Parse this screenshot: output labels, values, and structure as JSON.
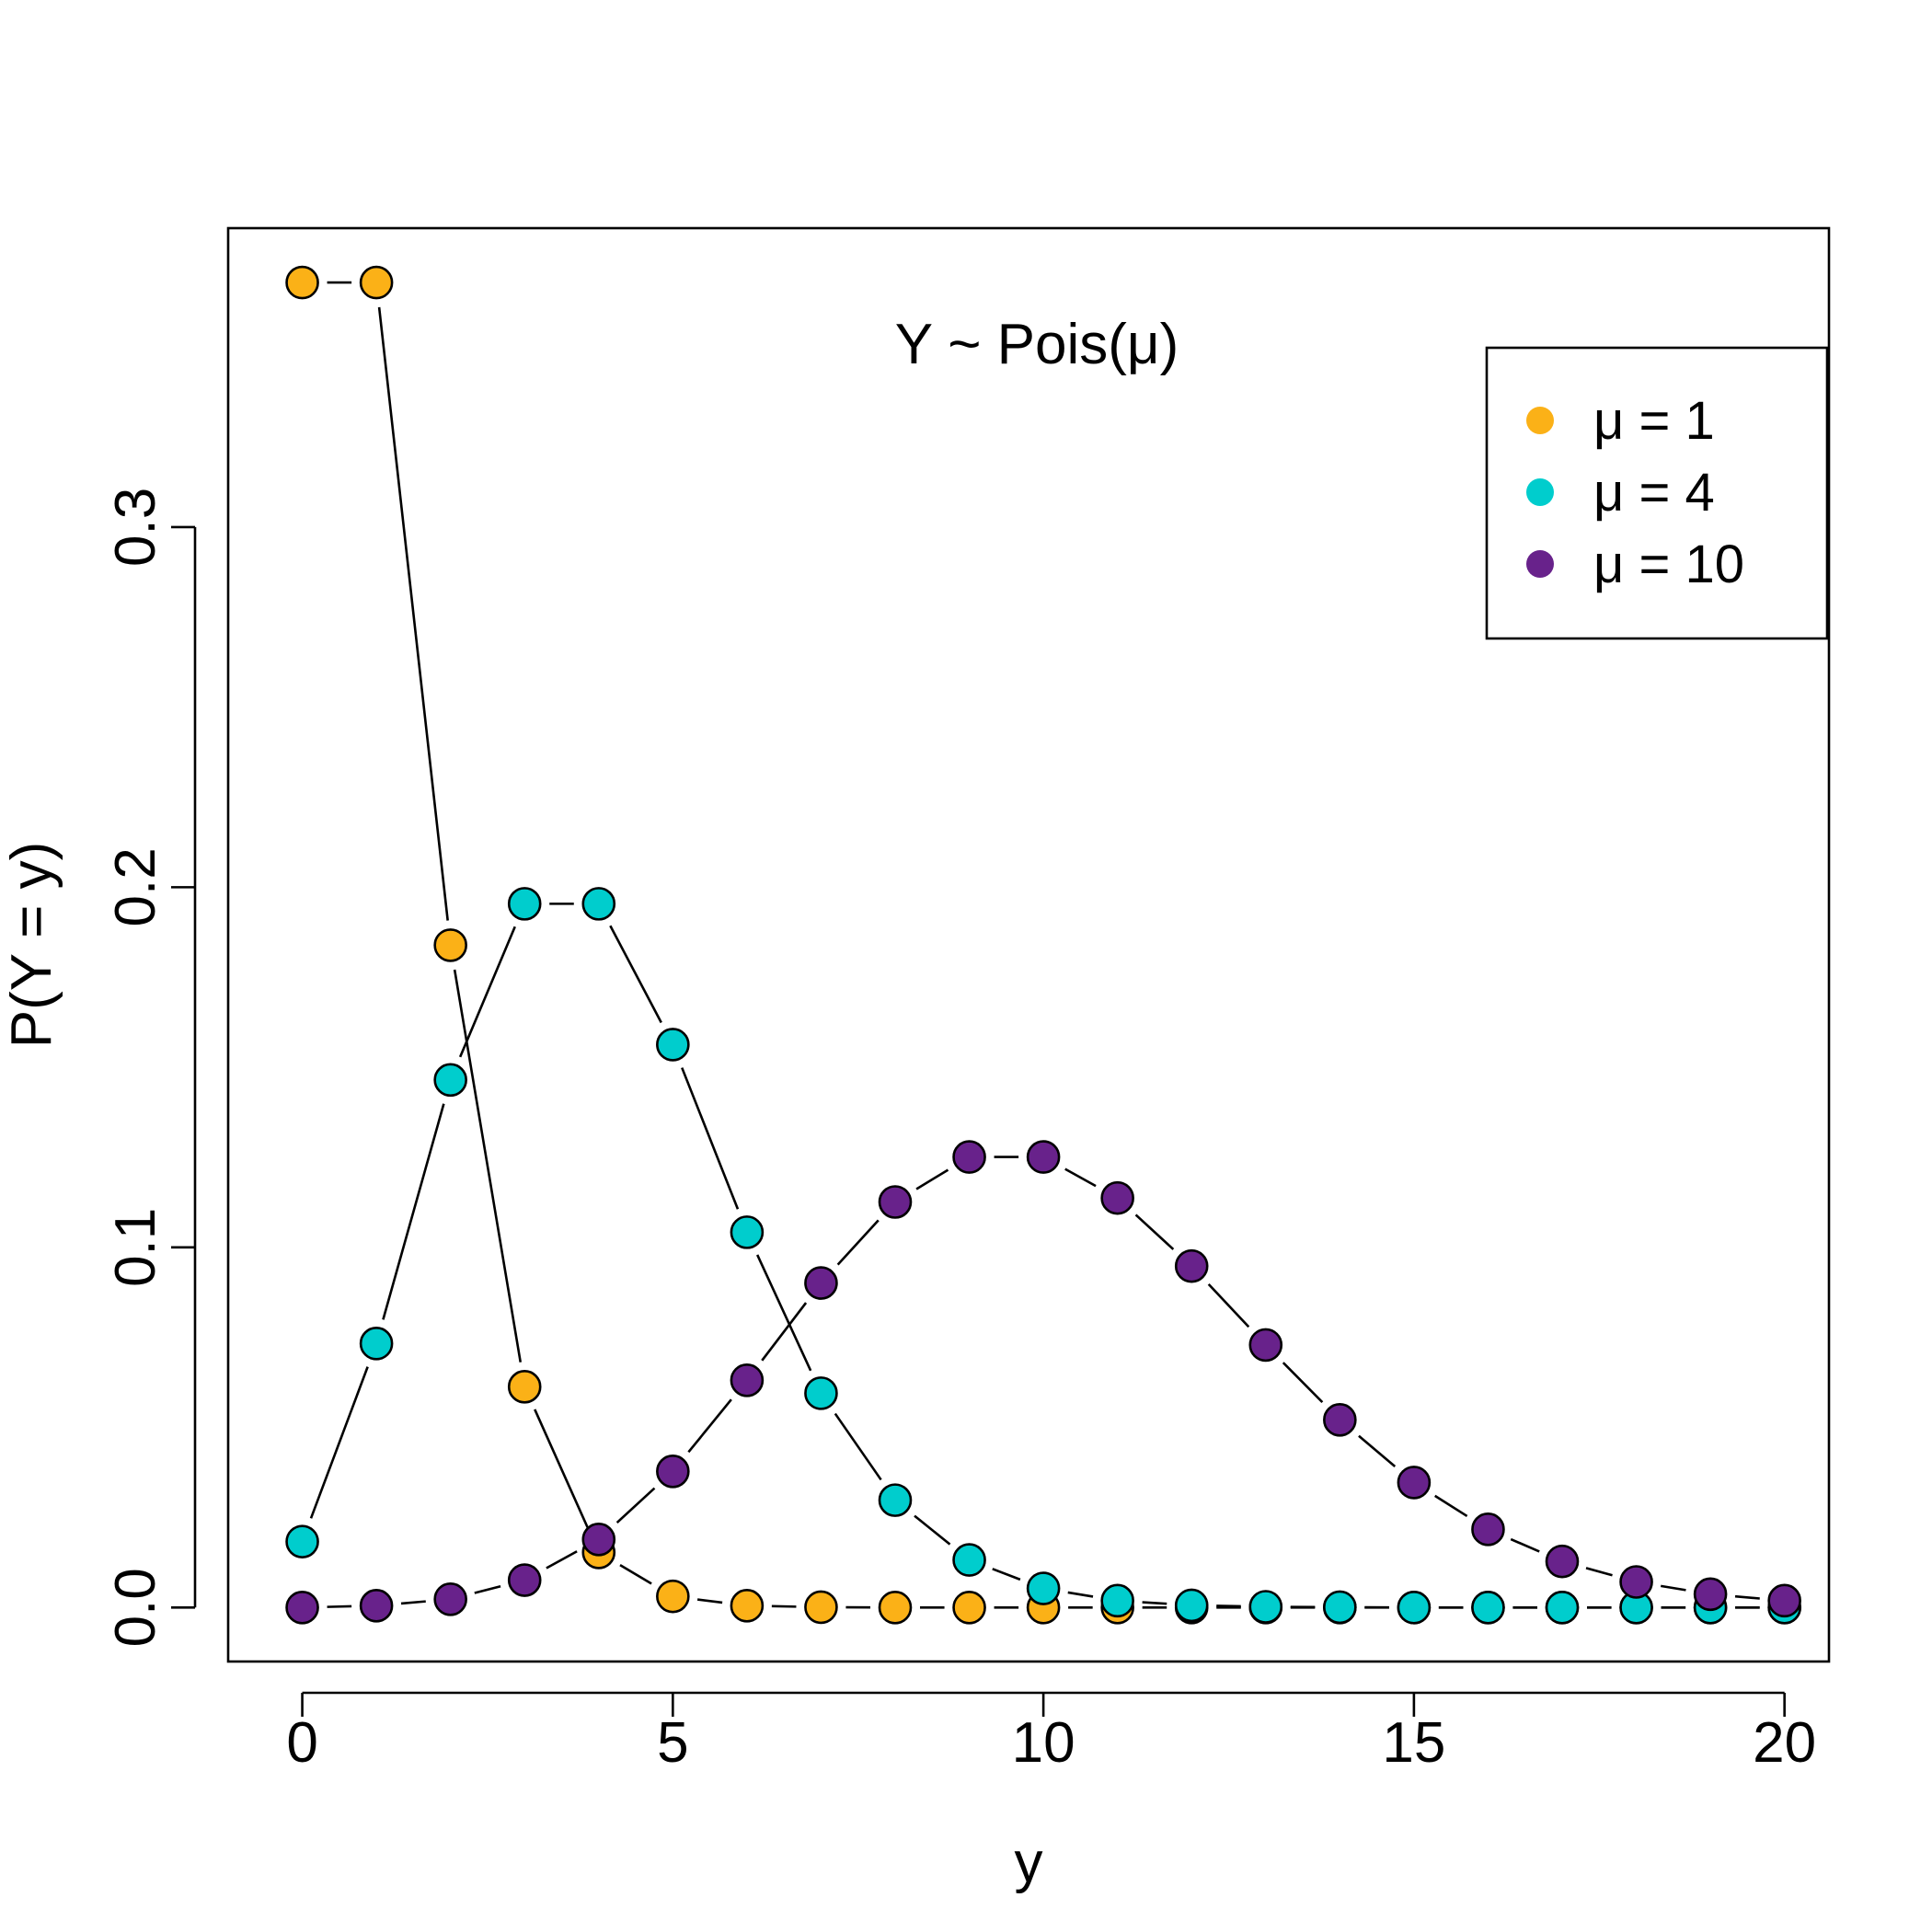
{
  "chart_data": {
    "type": "line",
    "title": "",
    "annotation": "Y ~ Pois(μ)",
    "xlabel": "y",
    "ylabel": "P(Y = y)",
    "xlim": [
      -1,
      20.6
    ],
    "ylim": [
      -0.015,
      0.383
    ],
    "xticks": [
      0,
      5,
      10,
      15,
      20
    ],
    "xtick_labels": [
      "0",
      "5",
      "10",
      "15",
      "20"
    ],
    "yticks": [
      0.0,
      0.1,
      0.2,
      0.3
    ],
    "ytick_labels": [
      "0.0",
      "0.1",
      "0.2",
      "0.3"
    ],
    "grid": false,
    "legend_position": "top-right",
    "x": [
      0,
      1,
      2,
      3,
      4,
      5,
      6,
      7,
      8,
      9,
      10,
      11,
      12,
      13,
      14,
      15,
      16,
      17,
      18,
      19,
      20
    ],
    "series": [
      {
        "name": "μ = 1",
        "color": "#FBB117",
        "values": [
          0.3679,
          0.3679,
          0.1839,
          0.0613,
          0.0153,
          0.0031,
          0.0005,
          0.0001,
          0.0,
          0.0,
          0.0,
          0.0,
          0.0,
          0.0,
          0.0,
          0.0,
          0.0,
          0.0,
          0.0,
          0.0,
          0.0
        ]
      },
      {
        "name": "μ = 4",
        "color": "#00CDCD",
        "values": [
          0.0183,
          0.0733,
          0.1465,
          0.1954,
          0.1954,
          0.1563,
          0.1042,
          0.0595,
          0.0298,
          0.0132,
          0.0053,
          0.0019,
          0.0006,
          0.0002,
          0.0001,
          0.0,
          0.0,
          0.0,
          0.0,
          0.0,
          0.0
        ]
      },
      {
        "name": "μ = 10",
        "color": "#68228B",
        "values": [
          0.0,
          0.0005,
          0.0023,
          0.0076,
          0.0189,
          0.0378,
          0.0631,
          0.0901,
          0.1126,
          0.1251,
          0.1251,
          0.1137,
          0.0948,
          0.0729,
          0.0521,
          0.0347,
          0.0217,
          0.0128,
          0.0071,
          0.0037,
          0.0019
        ]
      }
    ]
  }
}
